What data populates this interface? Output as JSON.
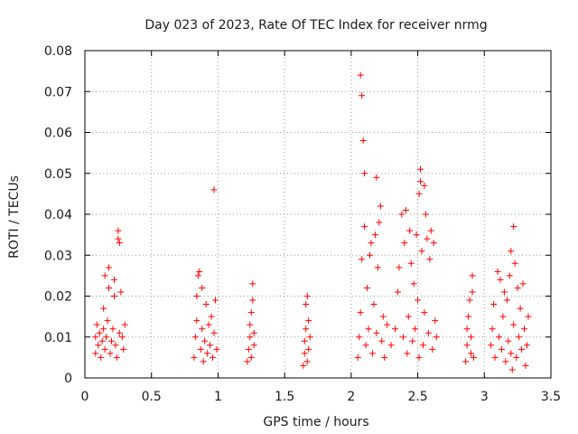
{
  "chart_data": {
    "type": "scatter",
    "title": "Day 023 of 2023, Rate Of TEC Index for receiver nrmg",
    "xlabel": "GPS time / hours",
    "ylabel": "ROTI / TECUs",
    "xlim": [
      0,
      3.5
    ],
    "ylim": [
      0,
      0.08
    ],
    "x_ticks": [
      0,
      0.5,
      1,
      1.5,
      2,
      2.5,
      3,
      3.5
    ],
    "x_tick_labels": [
      "0",
      "0.5",
      "1",
      "1.5",
      "2",
      "2.5",
      "3",
      "3.5"
    ],
    "y_ticks": [
      0,
      0.01,
      0.02,
      0.03,
      0.04,
      0.05,
      0.06,
      0.07,
      0.08
    ],
    "y_tick_labels": [
      "0",
      "0.01",
      "0.02",
      "0.03",
      "0.04",
      "0.05",
      "0.06",
      "0.07",
      "0.08"
    ],
    "grid": true,
    "marker": "+",
    "color": "#ff0000",
    "series": [
      {
        "name": "ROTI",
        "points": [
          [
            0.08,
            0.006
          ],
          [
            0.08,
            0.01
          ],
          [
            0.09,
            0.013
          ],
          [
            0.1,
            0.008
          ],
          [
            0.11,
            0.011
          ],
          [
            0.12,
            0.005
          ],
          [
            0.13,
            0.009
          ],
          [
            0.14,
            0.012
          ],
          [
            0.14,
            0.017
          ],
          [
            0.15,
            0.025
          ],
          [
            0.15,
            0.007
          ],
          [
            0.16,
            0.01
          ],
          [
            0.17,
            0.014
          ],
          [
            0.18,
            0.027
          ],
          [
            0.18,
            0.022
          ],
          [
            0.19,
            0.006
          ],
          [
            0.2,
            0.009
          ],
          [
            0.21,
            0.012
          ],
          [
            0.22,
            0.02
          ],
          [
            0.22,
            0.024
          ],
          [
            0.23,
            0.008
          ],
          [
            0.24,
            0.005
          ],
          [
            0.25,
            0.034
          ],
          [
            0.25,
            0.036
          ],
          [
            0.26,
            0.033
          ],
          [
            0.26,
            0.011
          ],
          [
            0.27,
            0.021
          ],
          [
            0.28,
            0.01
          ],
          [
            0.29,
            0.007
          ],
          [
            0.3,
            0.013
          ],
          [
            0.82,
            0.005
          ],
          [
            0.83,
            0.01
          ],
          [
            0.84,
            0.014
          ],
          [
            0.84,
            0.02
          ],
          [
            0.85,
            0.025
          ],
          [
            0.86,
            0.026
          ],
          [
            0.87,
            0.007
          ],
          [
            0.88,
            0.012
          ],
          [
            0.88,
            0.022
          ],
          [
            0.89,
            0.004
          ],
          [
            0.9,
            0.009
          ],
          [
            0.91,
            0.018
          ],
          [
            0.92,
            0.006
          ],
          [
            0.93,
            0.013
          ],
          [
            0.94,
            0.008
          ],
          [
            0.95,
            0.015
          ],
          [
            0.96,
            0.005
          ],
          [
            0.97,
            0.046
          ],
          [
            0.97,
            0.011
          ],
          [
            0.98,
            0.019
          ],
          [
            0.99,
            0.007
          ],
          [
            1.22,
            0.004
          ],
          [
            1.23,
            0.007
          ],
          [
            1.24,
            0.01
          ],
          [
            1.24,
            0.013
          ],
          [
            1.25,
            0.016
          ],
          [
            1.25,
            0.005
          ],
          [
            1.26,
            0.019
          ],
          [
            1.26,
            0.023
          ],
          [
            1.27,
            0.008
          ],
          [
            1.27,
            0.011
          ],
          [
            1.64,
            0.003
          ],
          [
            1.65,
            0.006
          ],
          [
            1.65,
            0.009
          ],
          [
            1.66,
            0.012
          ],
          [
            1.66,
            0.018
          ],
          [
            1.67,
            0.02
          ],
          [
            1.67,
            0.004
          ],
          [
            1.68,
            0.014
          ],
          [
            1.68,
            0.007
          ],
          [
            1.69,
            0.01
          ],
          [
            2.05,
            0.005
          ],
          [
            2.06,
            0.01
          ],
          [
            2.07,
            0.016
          ],
          [
            2.07,
            0.074
          ],
          [
            2.08,
            0.069
          ],
          [
            2.08,
            0.029
          ],
          [
            2.09,
            0.058
          ],
          [
            2.1,
            0.05
          ],
          [
            2.1,
            0.037
          ],
          [
            2.11,
            0.008
          ],
          [
            2.12,
            0.022
          ],
          [
            2.13,
            0.012
          ],
          [
            2.14,
            0.03
          ],
          [
            2.15,
            0.033
          ],
          [
            2.16,
            0.006
          ],
          [
            2.17,
            0.018
          ],
          [
            2.18,
            0.035
          ],
          [
            2.19,
            0.049
          ],
          [
            2.19,
            0.011
          ],
          [
            2.2,
            0.027
          ],
          [
            2.21,
            0.038
          ],
          [
            2.22,
            0.042
          ],
          [
            2.23,
            0.009
          ],
          [
            2.24,
            0.015
          ],
          [
            2.25,
            0.005
          ],
          [
            2.27,
            0.013
          ],
          [
            2.3,
            0.008
          ],
          [
            2.33,
            0.012
          ],
          [
            2.35,
            0.021
          ],
          [
            2.36,
            0.027
          ],
          [
            2.38,
            0.04
          ],
          [
            2.39,
            0.01
          ],
          [
            2.4,
            0.033
          ],
          [
            2.41,
            0.041
          ],
          [
            2.42,
            0.006
          ],
          [
            2.43,
            0.015
          ],
          [
            2.44,
            0.036
          ],
          [
            2.45,
            0.028
          ],
          [
            2.46,
            0.009
          ],
          [
            2.47,
            0.023
          ],
          [
            2.48,
            0.012
          ],
          [
            2.49,
            0.035
          ],
          [
            2.5,
            0.019
          ],
          [
            2.51,
            0.045
          ],
          [
            2.51,
            0.005
          ],
          [
            2.52,
            0.048
          ],
          [
            2.52,
            0.051
          ],
          [
            2.53,
            0.031
          ],
          [
            2.54,
            0.008
          ],
          [
            2.55,
            0.047
          ],
          [
            2.55,
            0.016
          ],
          [
            2.56,
            0.04
          ],
          [
            2.57,
            0.034
          ],
          [
            2.58,
            0.011
          ],
          [
            2.59,
            0.029
          ],
          [
            2.6,
            0.036
          ],
          [
            2.61,
            0.007
          ],
          [
            2.62,
            0.033
          ],
          [
            2.63,
            0.014
          ],
          [
            2.64,
            0.01
          ],
          [
            2.86,
            0.004
          ],
          [
            2.87,
            0.008
          ],
          [
            2.87,
            0.012
          ],
          [
            2.88,
            0.015
          ],
          [
            2.89,
            0.019
          ],
          [
            2.9,
            0.006
          ],
          [
            2.9,
            0.01
          ],
          [
            2.91,
            0.025
          ],
          [
            2.91,
            0.021
          ],
          [
            2.92,
            0.005
          ],
          [
            3.05,
            0.008
          ],
          [
            3.06,
            0.012
          ],
          [
            3.07,
            0.018
          ],
          [
            3.08,
            0.005
          ],
          [
            3.1,
            0.026
          ],
          [
            3.11,
            0.01
          ],
          [
            3.12,
            0.024
          ],
          [
            3.13,
            0.007
          ],
          [
            3.14,
            0.015
          ],
          [
            3.15,
            0.021
          ],
          [
            3.16,
            0.004
          ],
          [
            3.17,
            0.019
          ],
          [
            3.18,
            0.009
          ],
          [
            3.19,
            0.025
          ],
          [
            3.2,
            0.006
          ],
          [
            3.2,
            0.031
          ],
          [
            3.21,
            0.002
          ],
          [
            3.22,
            0.037
          ],
          [
            3.22,
            0.013
          ],
          [
            3.23,
            0.028
          ],
          [
            3.24,
            0.005
          ],
          [
            3.25,
            0.022
          ],
          [
            3.26,
            0.01
          ],
          [
            3.27,
            0.017
          ],
          [
            3.28,
            0.007
          ],
          [
            3.29,
            0.023
          ],
          [
            3.3,
            0.012
          ],
          [
            3.31,
            0.003
          ],
          [
            3.32,
            0.008
          ],
          [
            3.33,
            0.015
          ]
        ]
      }
    ]
  }
}
